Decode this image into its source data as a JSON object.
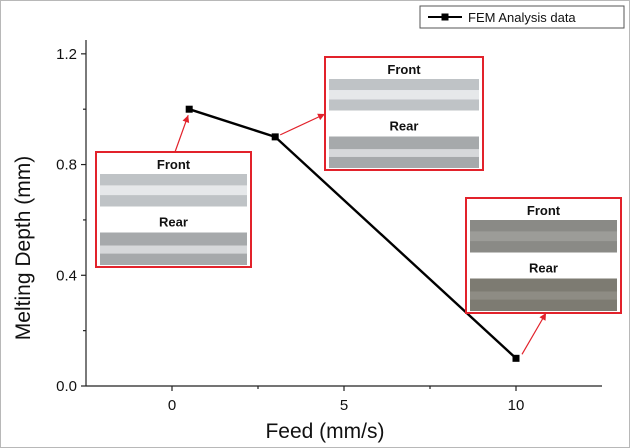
{
  "chart_data": {
    "type": "line",
    "xlabel": "Feed (mm/s)",
    "ylabel": "Melting Depth (mm)",
    "xlim": [
      -2.5,
      12.5
    ],
    "ylim": [
      0,
      1.25
    ],
    "x_ticks": [
      "0",
      "5",
      "10"
    ],
    "y_ticks": [
      "0.0",
      "0.4",
      "0.8",
      "1.2"
    ],
    "legend_position": "top-right",
    "grid": false,
    "series": [
      {
        "name": "FEM Analysis data",
        "color": "#000000",
        "marker": "square",
        "x": [
          0.5,
          3,
          10
        ],
        "y": [
          1.0,
          0.9,
          0.1
        ]
      }
    ],
    "insets": [
      {
        "top_label": "Front",
        "bottom_label": "Rear",
        "point_index": 0,
        "pointer_text": ""
      },
      {
        "top_label": "Front",
        "bottom_label": "Rear",
        "point_index": 1,
        "pointer_text": ""
      },
      {
        "top_label": "Front",
        "bottom_label": "Rear",
        "point_index": 2,
        "pointer_text": ""
      }
    ],
    "annotation_color": "#e2222b"
  }
}
